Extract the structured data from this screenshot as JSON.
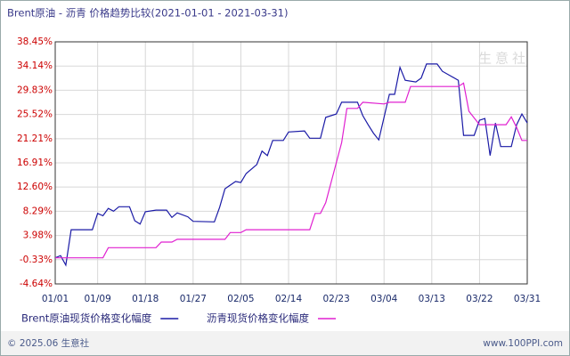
{
  "chart_data": {
    "type": "line",
    "title": "Brent原油 - 沥青  价格趋势比较(2021-01-01 - 2021-03-31)",
    "watermark": "生意社",
    "footer_left": "© 2025.06 生意社",
    "footer_right": "www.100PPI.com",
    "xlim": [
      "01/01",
      "03/31"
    ],
    "xticks": [
      "01/01",
      "01/09",
      "01/18",
      "01/27",
      "02/05",
      "02/14",
      "02/23",
      "03/04",
      "03/13",
      "03/22",
      "03/31"
    ],
    "ylim": [
      -4.64,
      38.45
    ],
    "yticks": [
      {
        "value": -4.64,
        "label": "-4.64%"
      },
      {
        "value": -0.33,
        "label": "-0.33%"
      },
      {
        "value": 3.98,
        "label": "3.98%"
      },
      {
        "value": 8.29,
        "label": "8.29%"
      },
      {
        "value": 12.6,
        "label": "12.60%"
      },
      {
        "value": 16.91,
        "label": "16.91%"
      },
      {
        "value": 21.21,
        "label": "21.21%"
      },
      {
        "value": 25.52,
        "label": "25.52%"
      },
      {
        "value": 29.83,
        "label": "29.83%"
      },
      {
        "value": 34.14,
        "label": "34.14%"
      },
      {
        "value": 38.45,
        "label": "38.45%"
      }
    ],
    "grid": true,
    "series": [
      {
        "name": "Brent原油现货价格变化幅度",
        "color": "#1a1aa6",
        "x": [
          "01/01",
          "01/02",
          "01/03",
          "01/04",
          "01/08",
          "01/09",
          "01/10",
          "01/11",
          "01/12",
          "01/13",
          "01/15",
          "01/16",
          "01/17",
          "01/18",
          "01/20",
          "01/22",
          "01/23",
          "01/24",
          "01/26",
          "01/27",
          "01/31",
          "02/01",
          "02/02",
          "02/04",
          "02/05",
          "02/06",
          "02/08",
          "02/09",
          "02/10",
          "02/11",
          "02/13",
          "02/14",
          "02/17",
          "02/18",
          "02/20",
          "02/21",
          "02/23",
          "02/24",
          "02/27",
          "02/28",
          "03/01",
          "03/02",
          "03/03",
          "03/04",
          "03/05",
          "03/06",
          "03/07",
          "03/08",
          "03/10",
          "03/11",
          "03/12",
          "03/14",
          "03/15",
          "03/18",
          "03/19",
          "03/21",
          "03/22",
          "03/23",
          "03/24",
          "03/25",
          "03/26",
          "03/28",
          "03/29",
          "03/30",
          "03/31"
        ],
        "values": [
          0.0,
          0.4,
          -1.3,
          5.0,
          5.0,
          7.9,
          7.5,
          8.8,
          8.3,
          9.1,
          9.1,
          6.6,
          6.0,
          8.2,
          8.5,
          8.5,
          7.2,
          8.0,
          7.3,
          6.5,
          6.4,
          9.0,
          12.3,
          13.6,
          13.4,
          15.0,
          16.6,
          19.0,
          18.2,
          20.9,
          20.9,
          22.4,
          22.6,
          21.3,
          21.3,
          25.0,
          25.6,
          27.7,
          27.7,
          25.3,
          23.7,
          22.2,
          21.0,
          25.0,
          29.1,
          29.1,
          33.9,
          31.6,
          31.3,
          32.0,
          34.5,
          34.5,
          33.2,
          31.6,
          21.8,
          21.8,
          24.5,
          24.8,
          18.2,
          24.0,
          19.8,
          19.8,
          23.7,
          25.6,
          24.0
        ]
      },
      {
        "name": "沥青现货价格变化幅度",
        "color": "#e020d0",
        "x": [
          "01/01",
          "01/10",
          "01/11",
          "01/20",
          "01/21",
          "01/23",
          "01/24",
          "02/02",
          "02/03",
          "02/05",
          "02/06",
          "02/18",
          "02/19",
          "02/20",
          "02/21",
          "02/22",
          "02/24",
          "02/25",
          "02/27",
          "02/28",
          "03/04",
          "03/05",
          "03/08",
          "03/09",
          "03/18",
          "03/19",
          "03/20",
          "03/22",
          "03/27",
          "03/28",
          "03/29",
          "03/30",
          "03/31"
        ],
        "values": [
          0.0,
          0.0,
          1.8,
          1.8,
          2.8,
          2.8,
          3.3,
          3.3,
          4.5,
          4.5,
          5.0,
          5.0,
          7.9,
          7.9,
          9.8,
          13.4,
          20.5,
          26.6,
          26.6,
          27.7,
          27.4,
          27.7,
          27.7,
          30.5,
          30.5,
          31.1,
          26.1,
          23.7,
          23.7,
          25.1,
          23.2,
          20.9,
          20.9
        ]
      }
    ]
  }
}
